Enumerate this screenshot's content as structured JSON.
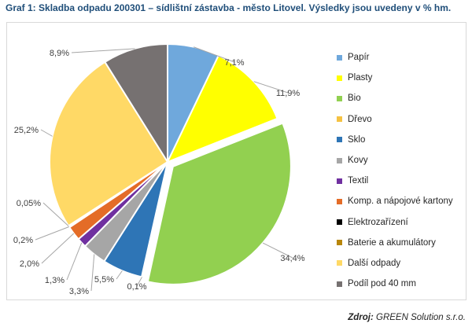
{
  "title": "Graf 1: Skladba odpadu 200301 – sídlištní zástavba - město Litovel. Výsledky jsou uvedeny v % hm.",
  "source": {
    "prefix": "Zdroj:",
    "text": "GREEN Solution s.r.o."
  },
  "chart_data": {
    "type": "pie",
    "title": "Graf 1: Skladba odpadu 200301 – sídlištní zástavba - město Litovel. Výsledky jsou uvedeny v % hm.",
    "unit": "% hm.",
    "legend_position": "right",
    "slices": [
      {
        "name": "Papír",
        "value": 7.1,
        "label": "7,1%",
        "color": "#6fa8dc"
      },
      {
        "name": "Plasty",
        "value": 11.9,
        "label": "11,9%",
        "color": "#ffff00"
      },
      {
        "name": "Bio",
        "value": 34.4,
        "label": "34,4%",
        "color": "#92d050",
        "exploded": true
      },
      {
        "name": "Dřevo",
        "value": 0.1,
        "label": "0,1%",
        "color": "#f5c242"
      },
      {
        "name": "Sklo",
        "value": 5.5,
        "label": "5,5%",
        "color": "#2e75b6"
      },
      {
        "name": "Kovy",
        "value": 3.3,
        "label": "3,3%",
        "color": "#a6a6a6"
      },
      {
        "name": "Textil",
        "value": 1.3,
        "label": "1,3%",
        "color": "#7030a0"
      },
      {
        "name": "Komp. a nápojové kartony",
        "value": 2.0,
        "label": "2,0%",
        "color": "#e46c27"
      },
      {
        "name": "Elektrozařízení",
        "value": 0.2,
        "label": "0,2%",
        "color": "#000000"
      },
      {
        "name": "Baterie a akumulátory",
        "value": 0.05,
        "label": "0,05%",
        "color": "#b8860b"
      },
      {
        "name": "Další odpady",
        "value": 25.2,
        "label": "25,2%",
        "color": "#ffd966"
      },
      {
        "name": "Podíl pod 40 mm",
        "value": 8.9,
        "label": "8,9%",
        "color": "#767171"
      }
    ]
  }
}
